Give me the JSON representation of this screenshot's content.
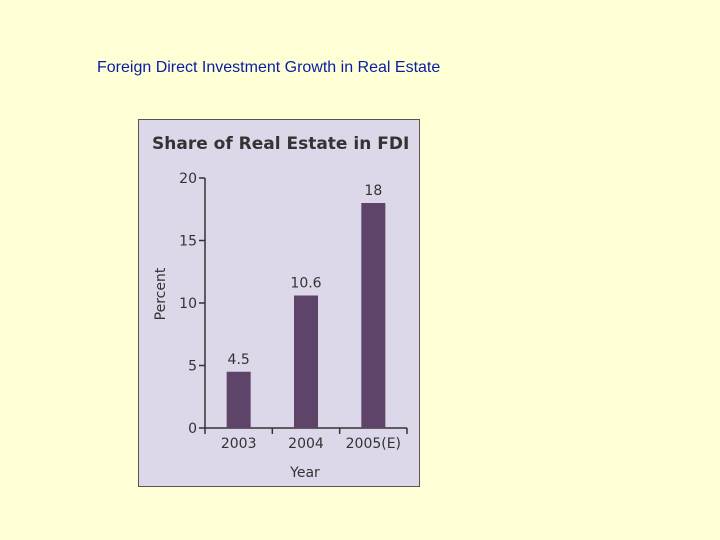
{
  "page": {
    "title": "Foreign Direct Investment Growth in Real Estate"
  },
  "colors": {
    "background": "#FFFFD5",
    "title": "#0A1BA8",
    "panel": "#DCD8EA",
    "bar": "#5E4468",
    "axis": "#333333"
  },
  "chart_data": {
    "type": "bar",
    "title": "Share of Real Estate in FDI",
    "xlabel": "Year",
    "ylabel": "Percent",
    "categories": [
      "2003",
      "2004",
      "2005(E)"
    ],
    "values": [
      4.5,
      10.6,
      18
    ],
    "data_labels": [
      "4.5",
      "10.6",
      "18"
    ],
    "ylim": [
      0,
      20
    ],
    "yticks": [
      0,
      5,
      10,
      15,
      20
    ],
    "grid": false,
    "legend": "none"
  }
}
